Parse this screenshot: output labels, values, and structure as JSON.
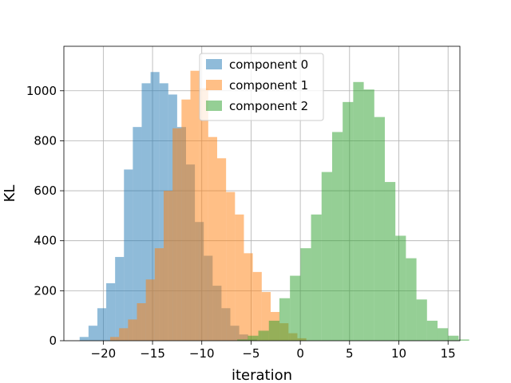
{
  "chart_data": {
    "type": "histogram",
    "title": "",
    "xlabel": "iteration",
    "ylabel": "KL",
    "xlim": [
      -24.0,
      16.2
    ],
    "ylim": [
      0,
      1178
    ],
    "xticks": [
      -20,
      -15,
      -10,
      -5,
      0,
      5,
      10,
      15
    ],
    "xtick_labels": [
      "−20",
      "−15",
      "−10",
      "−5",
      "0",
      "5",
      "10",
      "15"
    ],
    "yticks": [
      0,
      200,
      400,
      600,
      800,
      1000
    ],
    "ytick_labels": [
      "0",
      "200",
      "400",
      "600",
      "800",
      "1000"
    ],
    "grid": true,
    "legend_position": "top-center",
    "alpha": 0.5,
    "series": [
      {
        "name": "component 0",
        "color": "#1f77b4",
        "bin_start": -22.4,
        "bin_width": 0.9,
        "counts": [
          15,
          60,
          130,
          230,
          335,
          685,
          855,
          1030,
          1075,
          1030,
          985,
          855,
          705,
          475,
          340,
          220,
          130,
          60,
          25,
          5
        ]
      },
      {
        "name": "component 1",
        "color": "#ff7f0e",
        "bin_start": -19.3,
        "bin_width": 0.905,
        "counts": [
          15,
          50,
          85,
          150,
          245,
          370,
          600,
          850,
          965,
          1080,
          1010,
          815,
          730,
          595,
          505,
          350,
          275,
          195,
          115,
          70,
          30,
          10
        ]
      },
      {
        "name": "component 2",
        "color": "#2ca02c",
        "bin_start": -6.4,
        "bin_width": 1.07,
        "counts": [
          5,
          20,
          40,
          80,
          170,
          260,
          370,
          505,
          675,
          835,
          955,
          1035,
          1005,
          895,
          635,
          420,
          330,
          165,
          80,
          50,
          20,
          5
        ]
      }
    ]
  }
}
